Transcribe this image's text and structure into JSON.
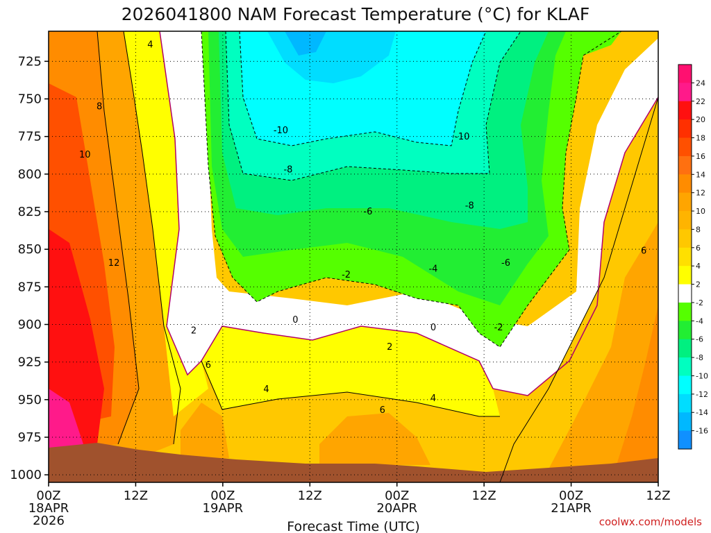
{
  "chart_data": {
    "type": "heatmap",
    "title": "2026041800 NAM Forecast Temperature (°C) for KLAF",
    "xlabel": "Forecast Time (UTC)",
    "ylabel": "",
    "credit": "coolwx.com/models",
    "x_ticks": [
      "00Z",
      "12Z",
      "00Z",
      "12Z",
      "00Z",
      "12Z",
      "00Z",
      "12Z"
    ],
    "x_tick_dates": [
      "18APR",
      "",
      "19APR",
      "",
      "20APR",
      "",
      "21APR",
      ""
    ],
    "x_tick_year": "2026",
    "x_range_hours": [
      0,
      84
    ],
    "y_ticks": [
      "725",
      "750",
      "775",
      "800",
      "825",
      "850",
      "875",
      "900",
      "925",
      "950",
      "975",
      "1000"
    ],
    "y_range_hpa": [
      705,
      1005
    ],
    "colorbar_ticks": [
      "24",
      "22",
      "20",
      "18",
      "16",
      "14",
      "12",
      "10",
      "8",
      "6",
      "4",
      "2",
      "-2",
      "-4",
      "-6",
      "-8",
      "-10",
      "-12",
      "-14",
      "-16"
    ],
    "colorbar_colors": [
      "#ff1070",
      "#ff1a8a",
      "#ff1010",
      "#ff3000",
      "#ff5000",
      "#ff7010",
      "#ff8c00",
      "#ffa500",
      "#ffb400",
      "#ffc800",
      "#ffe000",
      "#ffff00",
      "#ffffff",
      "#55ff00",
      "#22ee33",
      "#00f080",
      "#00ffc0",
      "#00ffff",
      "#00ddff",
      "#00b8ff",
      "#1090ff"
    ],
    "contour_labels": [
      {
        "text": "4",
        "hour": 14,
        "hpa": 715
      },
      {
        "text": "8",
        "hour": 7,
        "hpa": 756
      },
      {
        "text": "10",
        "hour": 5,
        "hpa": 788
      },
      {
        "text": "12",
        "hour": 9,
        "hpa": 860
      },
      {
        "text": "2",
        "hour": 20,
        "hpa": 905
      },
      {
        "text": "6",
        "hour": 22,
        "hpa": 928
      },
      {
        "text": "4",
        "hour": 30,
        "hpa": 944
      },
      {
        "text": "0",
        "hour": 34,
        "hpa": 898
      },
      {
        "text": "-2",
        "hour": 41,
        "hpa": 868
      },
      {
        "text": "-10",
        "hour": 32,
        "hpa": 772
      },
      {
        "text": "-8",
        "hour": 33,
        "hpa": 798
      },
      {
        "text": "-6",
        "hour": 44,
        "hpa": 826
      },
      {
        "text": "2",
        "hour": 47,
        "hpa": 916
      },
      {
        "text": "6",
        "hour": 46,
        "hpa": 958
      },
      {
        "text": "4",
        "hour": 53,
        "hpa": 950
      },
      {
        "text": "0",
        "hour": 53,
        "hpa": 903
      },
      {
        "text": "-4",
        "hour": 53,
        "hpa": 864
      },
      {
        "text": "-10",
        "hour": 57,
        "hpa": 776
      },
      {
        "text": "-8",
        "hour": 58,
        "hpa": 822
      },
      {
        "text": "-6",
        "hour": 63,
        "hpa": 860
      },
      {
        "text": "-2",
        "hour": 62,
        "hpa": 903
      },
      {
        "text": "6",
        "hour": 82,
        "hpa": 852
      }
    ]
  }
}
